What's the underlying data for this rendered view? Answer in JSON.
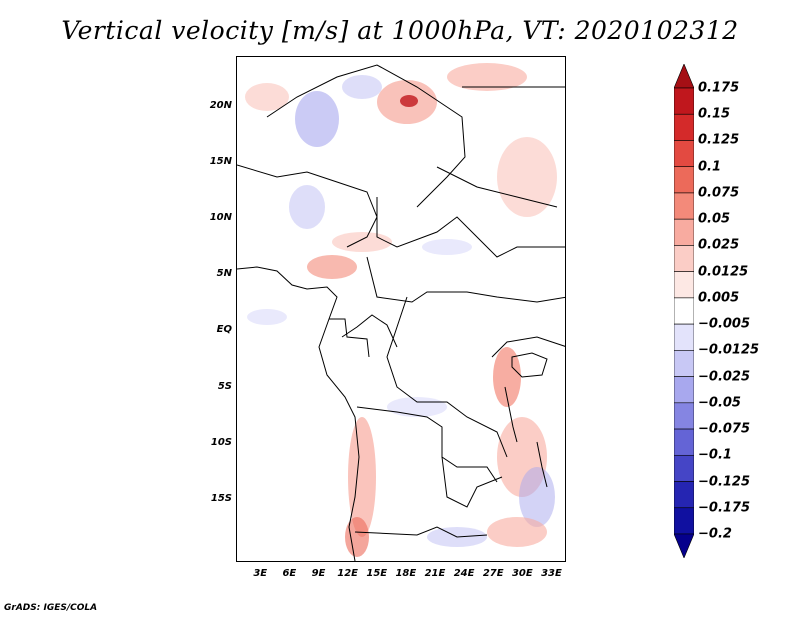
{
  "title": "Vertical velocity [m/s] at 1000hPa, VT: 2020102312",
  "credit": "GrADS: IGES/COLA",
  "map": {
    "lat_labels": [
      "20N",
      "15N",
      "10N",
      "5N",
      "EQ",
      "5S",
      "10S",
      "15S"
    ],
    "lat_values": [
      20,
      15,
      10,
      5,
      0,
      -5,
      -10,
      -15
    ],
    "lon_labels": [
      "3E",
      "6E",
      "9E",
      "12E",
      "15E",
      "18E",
      "21E",
      "24E",
      "27E",
      "30E",
      "33E"
    ],
    "lon_values": [
      3,
      6,
      9,
      12,
      15,
      18,
      21,
      24,
      27,
      30,
      33
    ],
    "lon_range": [
      0.5,
      34.5
    ],
    "lat_range": [
      -20.5,
      24.5
    ]
  },
  "colorbar": {
    "labels": [
      "0.175",
      "0.15",
      "0.125",
      "0.1",
      "0.075",
      "0.05",
      "0.025",
      "0.0125",
      "0.005",
      "-0.005",
      "-0.0125",
      "-0.025",
      "-0.05",
      "-0.075",
      "-0.1",
      "-0.125",
      "-0.175",
      "-0.2"
    ],
    "colors": [
      "#a50f15",
      "#c0171d",
      "#d42a2a",
      "#e34a41",
      "#ec6a5a",
      "#f38a7a",
      "#f8aba0",
      "#fbcdc6",
      "#fde8e4",
      "#ffffff",
      "#e3e3fb",
      "#c8c8f5",
      "#a8a8ee",
      "#8585e2",
      "#6464d6",
      "#4545c6",
      "#2525b2",
      "#1010a0",
      "#05008c"
    ]
  }
}
